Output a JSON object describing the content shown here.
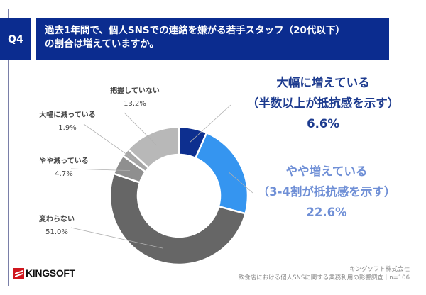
{
  "header": {
    "question_no": "Q4",
    "title_line1": "過去1年間で、個人SNSでの連絡を嫌がる若手スタッフ（20代以下）",
    "title_line2": "の割合は増えていますか。"
  },
  "chart_data": {
    "type": "pie",
    "variant": "donut",
    "title": "過去1年間で、個人SNSでの連絡を嫌がる若手スタッフ（20代以下）の割合は増えていますか。",
    "slices": [
      {
        "label": "大幅に増えている",
        "sublabel": "（半数以上が抵抗感を示す）",
        "value": 6.6,
        "display": "6.6%",
        "color": "#0d2f8f"
      },
      {
        "label": "やや増えている",
        "sublabel": "（3-4割が抵抗感を示す）",
        "value": 22.6,
        "display": "22.6%",
        "color": "#3595f0"
      },
      {
        "label": "変わらない",
        "value": 51.0,
        "display": "51.0%",
        "color": "#666666"
      },
      {
        "label": "やや減っている",
        "value": 4.7,
        "display": "4.7%",
        "color": "#8f8f8f"
      },
      {
        "label": "大幅に減っている",
        "value": 1.9,
        "display": "1.9%",
        "color": "#a6a6a6"
      },
      {
        "label": "把握していない",
        "value": 13.2,
        "display": "13.2%",
        "color": "#b8b8b8"
      }
    ],
    "start_angle": "12 o'clock",
    "direction": "clockwise"
  },
  "label_colors": {
    "increase_large": "#1d3b8f",
    "increase_slight": "#6f8fd6",
    "neutral": "#444444"
  },
  "footer": {
    "company": "キングソフト株式会社",
    "survey": "飲食店における個人SNSに関する業務利用の影響調査｜n=106"
  },
  "logo": {
    "text": "KINGSOFT"
  }
}
